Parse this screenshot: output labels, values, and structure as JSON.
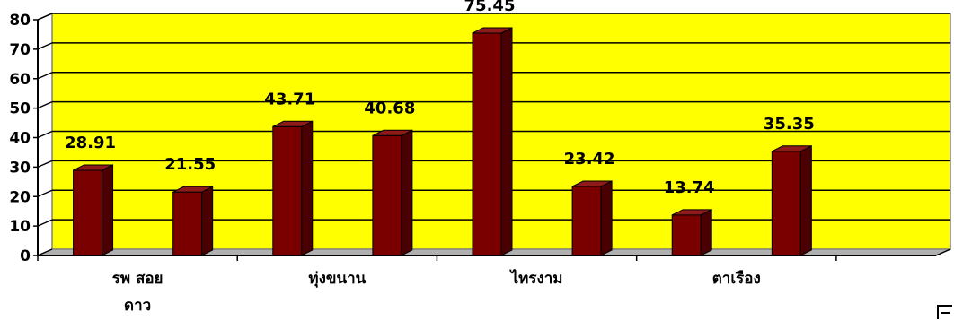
{
  "chart_data": {
    "type": "bar",
    "categories": [
      "รพ สอย\nดาว",
      "",
      "ทุ่งขนาน",
      "",
      "ไทรงาม",
      "",
      "ตาเรือง",
      "",
      ""
    ],
    "values": [
      28.91,
      21.55,
      43.71,
      40.68,
      75.45,
      23.42,
      13.74,
      35.35,
      null
    ],
    "value_labels": [
      "28.91",
      "21.55",
      "43.71",
      "40.68",
      "75.45",
      "23.42",
      "13.74",
      "35.35",
      ""
    ],
    "y_ticks": [
      "0",
      "10",
      "20",
      "30",
      "40",
      "50",
      "60",
      "70",
      "80"
    ],
    "ylim": [
      0,
      80
    ],
    "grid": true,
    "title": "",
    "xlabel": "",
    "ylabel": "",
    "colors": {
      "plot_background": "#ffff00",
      "floor": "#b0b0b0",
      "bar_front": "#7a0000",
      "bar_side": "#4a0000",
      "bar_top": "#8e1a1a",
      "grid": "#000000"
    }
  }
}
